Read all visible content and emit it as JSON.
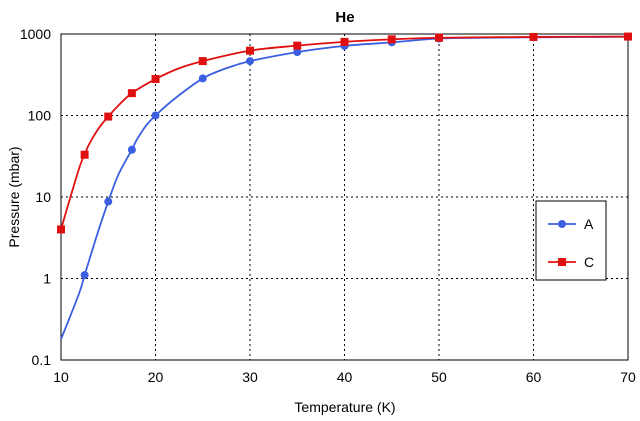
{
  "chart_data": {
    "type": "line",
    "title": "He",
    "xlabel": "Temperature (K)",
    "ylabel": "Pressure (mbar)",
    "xlim": [
      10,
      70
    ],
    "ylim": [
      0.1,
      1000
    ],
    "yscale": "log",
    "grid": true,
    "legend_position": "right",
    "x_ticks": [
      "10",
      "20",
      "30",
      "40",
      "50",
      "60",
      "70"
    ],
    "y_ticks": [
      "0.1",
      "1",
      "10",
      "100",
      "1000"
    ],
    "series": [
      {
        "name": "A",
        "color": "#3b5fe0",
        "marker": "circle",
        "markers": [
          [
            12.5,
            1.1
          ],
          [
            15,
            8.8
          ],
          [
            17.5,
            38
          ],
          [
            20,
            100
          ],
          [
            25,
            285
          ],
          [
            30,
            465
          ],
          [
            35,
            600
          ],
          [
            40,
            715
          ],
          [
            45,
            790
          ],
          [
            50,
            880
          ],
          [
            60,
            910
          ],
          [
            70,
            925
          ]
        ],
        "curve": [
          [
            10,
            0.18
          ],
          [
            11,
            0.35
          ],
          [
            12,
            0.7
          ],
          [
            12.5,
            1.1
          ],
          [
            13,
            1.7
          ],
          [
            14,
            4.0
          ],
          [
            15,
            8.8
          ],
          [
            16,
            18
          ],
          [
            17,
            30
          ],
          [
            17.5,
            38
          ],
          [
            18,
            50
          ],
          [
            19,
            75
          ],
          [
            20,
            100
          ],
          [
            22,
            160
          ],
          [
            25,
            285
          ],
          [
            27.5,
            380
          ],
          [
            30,
            465
          ],
          [
            35,
            600
          ],
          [
            40,
            715
          ],
          [
            45,
            790
          ],
          [
            50,
            880
          ],
          [
            55,
            900
          ],
          [
            60,
            910
          ],
          [
            65,
            918
          ],
          [
            70,
            925
          ]
        ]
      },
      {
        "name": "C",
        "color": "#e01010",
        "marker": "square",
        "markers": [
          [
            10,
            4
          ],
          [
            12.5,
            33
          ],
          [
            15,
            97
          ],
          [
            17.5,
            188
          ],
          [
            20,
            280
          ],
          [
            25,
            465
          ],
          [
            30,
            625
          ],
          [
            35,
            720
          ],
          [
            40,
            800
          ],
          [
            45,
            860
          ],
          [
            50,
            900
          ],
          [
            60,
            920
          ],
          [
            70,
            930
          ]
        ],
        "curve": [
          [
            10,
            4
          ],
          [
            11,
            10
          ],
          [
            12,
            24
          ],
          [
            12.5,
            33
          ],
          [
            13,
            45
          ],
          [
            14,
            70
          ],
          [
            15,
            97
          ],
          [
            16,
            130
          ],
          [
            17.5,
            188
          ],
          [
            20,
            280
          ],
          [
            22.5,
            380
          ],
          [
            25,
            465
          ],
          [
            30,
            625
          ],
          [
            35,
            720
          ],
          [
            40,
            800
          ],
          [
            45,
            860
          ],
          [
            50,
            900
          ],
          [
            60,
            920
          ],
          [
            70,
            930
          ]
        ]
      }
    ]
  }
}
